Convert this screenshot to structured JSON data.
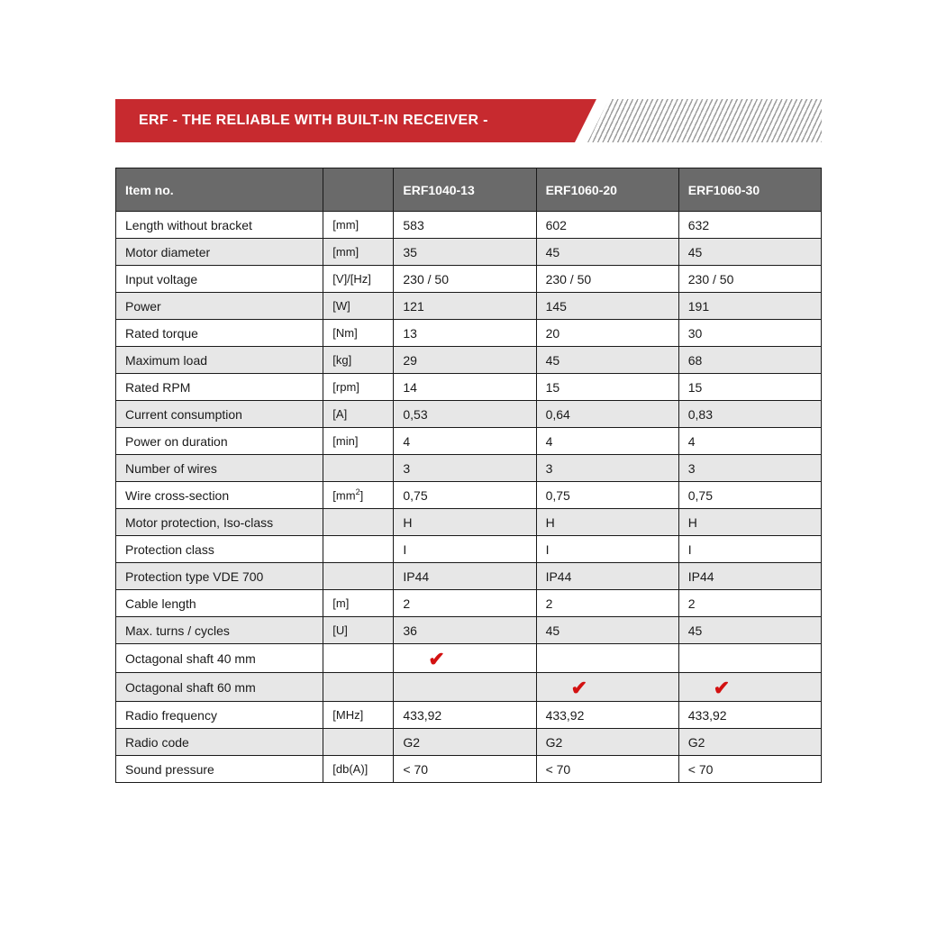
{
  "banner": {
    "title": "ERF - THE RELIABLE WITH BUILT-IN RECEIVER -",
    "banner_color": "#c72a2f",
    "text_color": "#ffffff",
    "hatch_color": "#9e9e9e"
  },
  "table": {
    "header_bg": "#6a6a6a",
    "header_fg": "#ffffff",
    "row_shaded_bg": "#e7e7e7",
    "row_plain_bg": "#ffffff",
    "border_color": "#1a1a1a",
    "check_color": "#d31111",
    "columns": {
      "label_header": "Item no.",
      "unit_header": "",
      "models": [
        "ERF1040-13",
        "ERF1060-20",
        "ERF1060-30"
      ]
    },
    "rows": [
      {
        "label": "Length without bracket",
        "unit": "[mm]",
        "values": [
          "583",
          "602",
          "632"
        ],
        "shaded": false
      },
      {
        "label": "Motor diameter",
        "unit": "[mm]",
        "values": [
          "35",
          "45",
          "45"
        ],
        "shaded": true
      },
      {
        "label": "Input voltage",
        "unit": "[V]/[Hz]",
        "values": [
          "230 / 50",
          "230 / 50",
          "230 / 50"
        ],
        "shaded": false
      },
      {
        "label": "Power",
        "unit": "[W]",
        "values": [
          "121",
          "145",
          "191"
        ],
        "shaded": true
      },
      {
        "label": "Rated torque",
        "unit": "[Nm]",
        "values": [
          "13",
          "20",
          "30"
        ],
        "shaded": false
      },
      {
        "label": "Maximum load",
        "unit": "[kg]",
        "values": [
          "29",
          "45",
          "68"
        ],
        "shaded": true
      },
      {
        "label": "Rated RPM",
        "unit": "[rpm]",
        "values": [
          "14",
          "15",
          "15"
        ],
        "shaded": false
      },
      {
        "label": "Current consumption",
        "unit": "[A]",
        "values": [
          "0,53",
          "0,64",
          "0,83"
        ],
        "shaded": true
      },
      {
        "label": "Power on duration",
        "unit": "[min]",
        "values": [
          "4",
          "4",
          "4"
        ],
        "shaded": false
      },
      {
        "label": "Number of wires",
        "unit": "",
        "values": [
          "3",
          "3",
          "3"
        ],
        "shaded": true
      },
      {
        "label": "Wire cross-section",
        "unit": "[mm²]",
        "unit_html": "[mm<sup>2</sup>]",
        "values": [
          "0,75",
          "0,75",
          "0,75"
        ],
        "shaded": false
      },
      {
        "label": "Motor protection, Iso-class",
        "unit": "",
        "values": [
          "H",
          "H",
          "H"
        ],
        "shaded": true
      },
      {
        "label": "Protection class",
        "unit": "",
        "values": [
          "I",
          "I",
          "I"
        ],
        "shaded": false
      },
      {
        "label": "Protection type VDE 700",
        "unit": "",
        "values": [
          "IP44",
          "IP44",
          "IP44"
        ],
        "shaded": true
      },
      {
        "label": "Cable length",
        "unit": "[m]",
        "values": [
          "2",
          "2",
          "2"
        ],
        "shaded": false
      },
      {
        "label": "Max. turns / cycles",
        "unit": "[U]",
        "values": [
          "36",
          "45",
          "45"
        ],
        "shaded": true
      },
      {
        "label": "Octagonal shaft 40 mm",
        "unit": "",
        "values": [
          "✔",
          "",
          ""
        ],
        "check_row": true,
        "shaded": false
      },
      {
        "label": "Octagonal shaft 60 mm",
        "unit": "",
        "values": [
          "",
          "✔",
          "✔"
        ],
        "check_row": true,
        "shaded": true
      },
      {
        "label": "Radio frequency",
        "unit": "[MHz]",
        "values": [
          "433,92",
          "433,92",
          "433,92"
        ],
        "shaded": false
      },
      {
        "label": "Radio code",
        "unit": "",
        "values": [
          "G2",
          "G2",
          "G2"
        ],
        "shaded": true
      },
      {
        "label": "Sound pressure",
        "unit": "[db(A)]",
        "values": [
          "< 70",
          "< 70",
          "< 70"
        ],
        "shaded": false
      }
    ]
  }
}
